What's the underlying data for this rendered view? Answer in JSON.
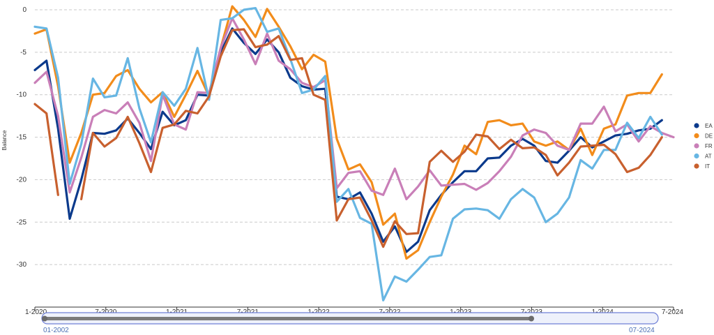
{
  "chart_data": {
    "type": "line",
    "ylabel": "Balance",
    "ylim": [
      -35,
      0
    ],
    "y_ticks": [
      0,
      -5,
      -10,
      -15,
      -20,
      -25,
      -30
    ],
    "x_start": "2020-01",
    "x_end": "2024-08",
    "x_tick_labels": [
      "1-2020",
      "7-2020",
      "1-2021",
      "7-2021",
      "1-2022",
      "7-2022",
      "1-2023",
      "7-2023",
      "1-2024",
      "7-2024"
    ],
    "grid": true,
    "legend_position": "right",
    "series": [
      {
        "name": "EA",
        "color": "#0b3a8c",
        "values": [
          -7.1,
          -6.0,
          -14.0,
          -24.6,
          -20.0,
          -14.5,
          -14.6,
          -14.2,
          -12.8,
          -14.5,
          -16.4,
          -12.0,
          -13.6,
          -13.0,
          -10.0,
          -10.1,
          -5.0,
          -2.2,
          -3.9,
          -5.2,
          -3.5,
          -5.0,
          -8.0,
          -9.0,
          -9.4,
          -9.3,
          -22.0,
          -22.3,
          -21.5,
          -24.0,
          -27.3,
          -25.5,
          -28.5,
          -27.3,
          -23.6,
          -21.8,
          -20.3,
          -19.0,
          -19.0,
          -17.5,
          -17.4,
          -16.0,
          -15.2,
          -16.0,
          -17.8,
          -18.0,
          -16.6,
          -15.0,
          -16.2,
          -15.5,
          -14.8,
          -14.6,
          -14.2,
          -14.0,
          -13.0
        ]
      },
      {
        "name": "DE",
        "color": "#f28c1b",
        "values": [
          -2.8,
          -2.3,
          -9.0,
          -18.0,
          -14.5,
          -10.0,
          -9.8,
          -7.8,
          -7.1,
          -9.3,
          -10.9,
          -9.7,
          -12.6,
          -10.0,
          -7.2,
          -10.2,
          -4.5,
          0.4,
          -1.2,
          -3.2,
          0.1,
          -2.0,
          -4.3,
          -7.0,
          -5.3,
          -6.1,
          -15.2,
          -18.8,
          -18.2,
          -20.3,
          -25.3,
          -24.0,
          -29.3,
          -28.3,
          -25.0,
          -22.0,
          -19.4,
          -16.0,
          -17.0,
          -13.2,
          -13.0,
          -13.6,
          -13.4,
          -15.5,
          -16.0,
          -15.5,
          -16.5,
          -14.0,
          -17.1,
          -14.0,
          -13.5,
          -10.1,
          -9.8,
          -9.8,
          -7.6
        ]
      },
      {
        "name": "FR",
        "color": "#c97fb8",
        "values": [
          -8.6,
          -7.3,
          -12.5,
          -21.5,
          -17.4,
          -12.6,
          -11.8,
          -12.2,
          -10.9,
          -13.3,
          -17.8,
          -10.0,
          -13.5,
          -14.1,
          -9.7,
          -9.8,
          -4.5,
          -1.0,
          -3.5,
          -6.4,
          -2.8,
          -6.0,
          -7.0,
          -8.6,
          -9.1,
          -8.3,
          -21.0,
          -19.2,
          -19.0,
          -21.3,
          -21.8,
          -18.7,
          -22.3,
          -20.8,
          -18.9,
          -20.7,
          -20.6,
          -20.5,
          -21.2,
          -20.4,
          -19.0,
          -17.3,
          -14.8,
          -14.1,
          -14.5,
          -16.0,
          -16.5,
          -13.4,
          -13.4,
          -11.4,
          -14.3,
          -13.5,
          -15.5,
          -13.7,
          -14.5,
          -15.0
        ]
      },
      {
        "name": "AT",
        "color": "#67b6e3",
        "values": [
          -2.0,
          -2.2,
          -8.0,
          -20.5,
          -15.8,
          -8.1,
          -10.3,
          -10.1,
          -5.7,
          -11.6,
          -15.6,
          -9.7,
          -11.3,
          -9.3,
          -4.5,
          -10.6,
          -1.2,
          -1.0,
          0.0,
          0.2,
          -2.6,
          -2.2,
          -5.8,
          -9.8,
          -9.4,
          -7.8,
          -22.6,
          -21.1,
          -24.5,
          -25.2,
          -34.2,
          -31.4,
          -32.0,
          -30.6,
          -29.1,
          -28.9,
          -24.6,
          -23.5,
          -23.4,
          -23.6,
          -24.6,
          -22.3,
          -21.1,
          -22.1,
          -25.0,
          -24.0,
          -22.1,
          -17.7,
          -18.7,
          -16.5,
          -16.5,
          -13.3,
          -15.1,
          -12.6,
          -14.7
        ]
      },
      {
        "name": "IT",
        "color": "#c8602e",
        "values": [
          -11.1,
          -12.2,
          -21.8,
          null,
          -22.3,
          -14.5,
          -16.1,
          -15.1,
          -12.6,
          -15.7,
          -19.1,
          -13.9,
          -13.5,
          -11.9,
          -12.2,
          -10.2,
          -5.5,
          -2.4,
          -2.3,
          -4.4,
          -4.1,
          -3.1,
          -5.9,
          -5.7,
          -10.0,
          -10.6,
          -24.8,
          -22.3,
          -22.1,
          -24.8,
          -27.9,
          -24.9,
          -26.4,
          -26.3,
          -17.9,
          -16.6,
          -17.9,
          -16.7,
          -14.7,
          -14.9,
          -16.4,
          -15.3,
          -16.3,
          -16.2,
          -17.1,
          -19.5,
          -18.0,
          -16.1,
          -16.0,
          -15.9,
          -17.0,
          -19.1,
          -18.6,
          -17.1,
          -15.0
        ]
      }
    ]
  },
  "range_slider": {
    "start_label": "01-2002",
    "end_label": "07-2024"
  }
}
